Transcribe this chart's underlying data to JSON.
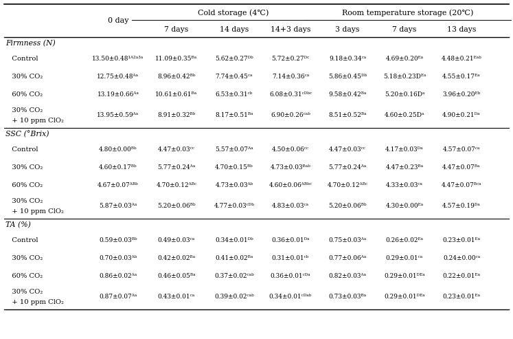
{
  "sections": [
    {
      "section_title": "Firmness (N)",
      "rows": [
        {
          "label": "   Control",
          "values": [
            "13.50±0.48¹ᴬ²ᵃ³ᵃ",
            "11.09±0.35ᴮᵃ",
            "5.62±0.27ᴰᵇ",
            "5.72±0.27ᴰᶜ",
            "9.18±0.34ᶜᵃ",
            "4.69±0.20ᴱᵃ",
            "4.48±0.21ᴱᵃᵇ"
          ]
        },
        {
          "label": "   30% CO₂",
          "values": [
            "12.75±0.48ᴬᵃ",
            "8.96±0.42ᴮᵇ",
            "7.74±0.45ᶜᵃ",
            "7.14±0.36ᶜᵃ",
            "5.86±0.45ᴰᵇ",
            "5.18±0.23Dᴱᵃ",
            "4.55±0.17ᴱᵃ"
          ]
        },
        {
          "label": "   60% CO₂",
          "values": [
            "13.19±0.66ᴬᵃ",
            "10.61±0.61ᴮᵃ",
            "6.53±0.31ᶜᵇ",
            "6.08±0.31ᶜᴰᵇᶜ",
            "9.58±0.42ᴮᵃ",
            "5.20±0.16Dᵃ",
            "3.96±0.20ᴱᵇ"
          ]
        },
        {
          "label": "   30% CO₂\n   + 10 ppm ClO₂",
          "values": [
            "13.95±0.59ᴬᵃ",
            "8.91±0.32ᴮᵇ",
            "8.17±0.51ᴮᵃ",
            "6.90±0.26ᶜᵃᵇ",
            "8.51±0.52ᴮᵃ",
            "4.60±0.25Dᵃ",
            "4.90±0.21ᴰᵃ"
          ]
        }
      ]
    },
    {
      "section_title": "SSC (°Brix)",
      "rows": [
        {
          "label": "   Control",
          "values": [
            "4.80±0.00ᴮᵇ",
            "4.47±0.03ᶜᶜ",
            "5.57±0.07ᴬᵃ",
            "4.50±0.06ᶜᶜ",
            "4.47±0.03ᶜᶜ",
            "4.17±0.03ᴰᵃ",
            "4.57±0.07ᶜᵃ"
          ]
        },
        {
          "label": "   30% CO₂",
          "values": [
            "4.60±0.17ᴮᵇ",
            "5.77±0.24ᴬᵃ",
            "4.70±0.15ᴮᵇ",
            "4.73±0.03ᴮᵃᵇ",
            "5.77±0.24ᴬᵃ",
            "4.47±0.23ᴮᵃ",
            "4.47±0.07ᴮᵃ"
          ]
        },
        {
          "label": "   60% CO₂",
          "values": [
            "4.67±0.07ᴬᴮᵇ",
            "4.70±0.12ᴬᴮᶜ",
            "4.73±0.03ᴬᵇ",
            "4.60±0.06ᴬᴮᵇᶜ",
            "4.70±0.12ᴬᴮᶜ",
            "4.33±0.03ᶜᵃ",
            "4.47±0.07ᴮᶜᵃ"
          ]
        },
        {
          "label": "   30% CO₂\n   + 10 ppm ClO₂",
          "values": [
            "5.87±0.03ᴬᵃ",
            "5.20±0.06ᴮᵇ",
            "4.77±0.03ᶜᴰᵇ",
            "4.83±0.03ᶜᵃ",
            "5.20±0.06ᴮᵇ",
            "4.30±0.00ᴱᵃ",
            "4.57±0.19ᴰᵃ"
          ]
        }
      ]
    },
    {
      "section_title": "TA (%)",
      "rows": [
        {
          "label": "   Control",
          "values": [
            "0.59±0.03ᴮᵇ",
            "0.49±0.03ᶜᵃ",
            "0.34±0.01ᴰᵇ",
            "0.36±0.01ᴰᵃ",
            "0.75±0.03ᴬᵃ",
            "0.26±0.02ᴱᵃ",
            "0.23±0.01ᴱᵃ"
          ]
        },
        {
          "label": "   30% CO₂",
          "values": [
            "0.70±0.03ᴬᵇ",
            "0.42±0.02ᴮᵃ",
            "0.41±0.02ᴮᵃ",
            "0.31±0.01ᶜᵇ",
            "0.77±0.06ᴬᵃ",
            "0.29±0.01ᶜᵃ",
            "0.24±0.00ᶜᵃ"
          ]
        },
        {
          "label": "   60% CO₂",
          "values": [
            "0.86±0.02ᴬᵃ",
            "0.46±0.05ᴮᵃ",
            "0.37±0.02ᶜᵃᵇ",
            "0.36±0.01ᶜᴰᵃ",
            "0.82±0.03ᴬᵃ",
            "0.29±0.01ᴰᴱᵃ",
            "0.22±0.01ᴱᵃ"
          ]
        },
        {
          "label": "   30% CO₂\n   + 10 ppm ClO₂",
          "values": [
            "0.87±0.07ᴬᵃ",
            "0.43±0.01ᶜᵃ",
            "0.39±0.02ᶜᵃᵇ",
            "0.34±0.01ᶜᴰᵃᵇ",
            "0.73±0.03ᴮᵃ",
            "0.29±0.01ᴰᴱᵃ",
            "0.23±0.01ᴱᵃ"
          ]
        }
      ]
    }
  ],
  "col1_header": "0 day",
  "cold_header": "Cold storage (4℃)",
  "room_header": "Room temperature storage (20℃)",
  "cold_subcols": [
    "7 days",
    "14 days",
    "14+3 days"
  ],
  "room_subcols": [
    "3 days",
    "7 days",
    "13 days"
  ],
  "bg_color": "#ffffff",
  "line_color": "#000000",
  "text_color": "#000000"
}
